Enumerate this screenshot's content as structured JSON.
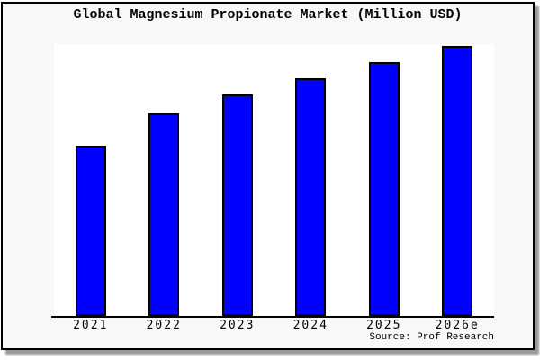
{
  "page": {
    "title": "Global Magnesium Propionate Market (Million USD)",
    "source": "Source: Prof Research"
  },
  "colors": {
    "bar_fill": "#0000FF",
    "bar_border": "#000000",
    "canvas_background": "#F8F8F8",
    "plot_background": "#FFFFFF",
    "frame_border": "#000000",
    "shadow": "#999999"
  },
  "chart_data": {
    "type": "bar",
    "title": "Global Magnesium Propionate Market (Million USD)",
    "categories": [
      "2021",
      "2022",
      "2023",
      "2024",
      "2025",
      "2026e"
    ],
    "values": [
      63,
      75,
      82,
      88,
      94,
      100
    ],
    "value_note": "y-axis unlabeled; values estimated relative to tallest bar = 100",
    "xlabel": "",
    "ylabel": "",
    "ylim": [
      0,
      100.7
    ],
    "grid": false,
    "legend": false,
    "source": "Source: Prof Research"
  }
}
